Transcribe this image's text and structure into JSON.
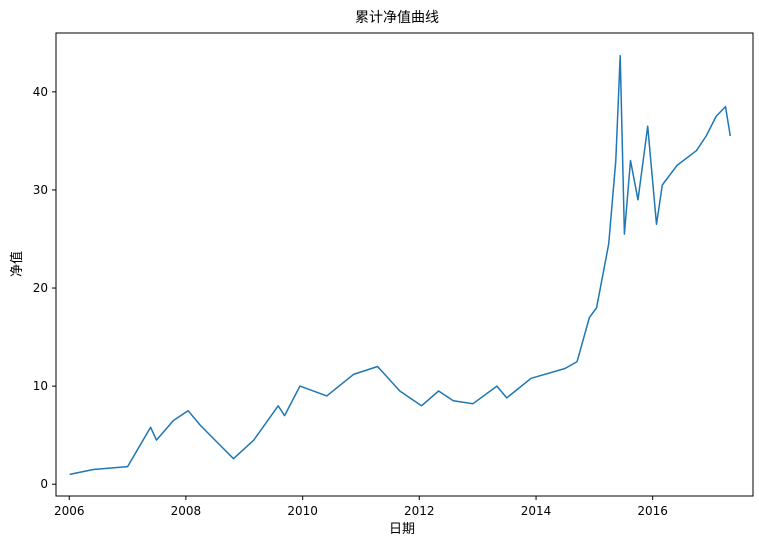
{
  "chart_data": {
    "type": "line",
    "title": "累计净值曲线",
    "xlabel": "日期",
    "ylabel": "净值",
    "xlim": [
      "2005-10-10",
      "2017-09-20"
    ],
    "ylim": [
      -1.2,
      46
    ],
    "x_ticks": [
      "2006",
      "2008",
      "2010",
      "2012",
      "2014",
      "2016"
    ],
    "y_ticks": [
      "0",
      "10",
      "20",
      "30",
      "40"
    ],
    "grid": false,
    "legend": "none",
    "color": "#1f77b4",
    "series": [
      {
        "x": [
          "2006-01-04",
          "2006-06-01",
          "2007-01-01",
          "2007-05-25",
          "2007-07-01",
          "2007-10-15",
          "2008-01-15",
          "2008-04-01",
          "2008-07-01",
          "2008-10-25",
          "2009-03-01",
          "2009-08-01",
          "2009-09-10",
          "2009-12-15",
          "2010-06-01",
          "2010-11-15",
          "2011-04-15",
          "2011-09-01",
          "2012-01-15",
          "2012-05-01",
          "2012-08-01",
          "2012-12-01",
          "2013-05-01",
          "2013-07-01",
          "2013-12-01",
          "2014-07-01",
          "2014-09-15",
          "2014-12-01",
          "2015-01-15",
          "2015-04-01",
          "2015-05-15",
          "2015-06-12",
          "2015-07-08",
          "2015-08-15",
          "2015-10-01",
          "2015-12-01",
          "2016-01-25",
          "2016-03-01",
          "2016-06-01",
          "2016-10-01",
          "2016-12-01",
          "2017-02-01",
          "2017-04-01",
          "2017-05-01"
        ],
        "y": [
          1.0,
          1.5,
          1.8,
          5.8,
          4.5,
          6.5,
          7.5,
          6.0,
          4.5,
          2.6,
          4.5,
          8.0,
          7.0,
          10.0,
          9.0,
          11.2,
          12.0,
          9.5,
          8.0,
          9.5,
          8.5,
          8.2,
          10.0,
          8.8,
          10.8,
          11.8,
          12.5,
          17.0,
          18.0,
          24.5,
          33.0,
          43.7,
          25.5,
          33.0,
          29.0,
          36.5,
          26.5,
          30.5,
          32.5,
          34.0,
          35.5,
          37.5,
          38.5,
          35.5
        ]
      }
    ]
  }
}
